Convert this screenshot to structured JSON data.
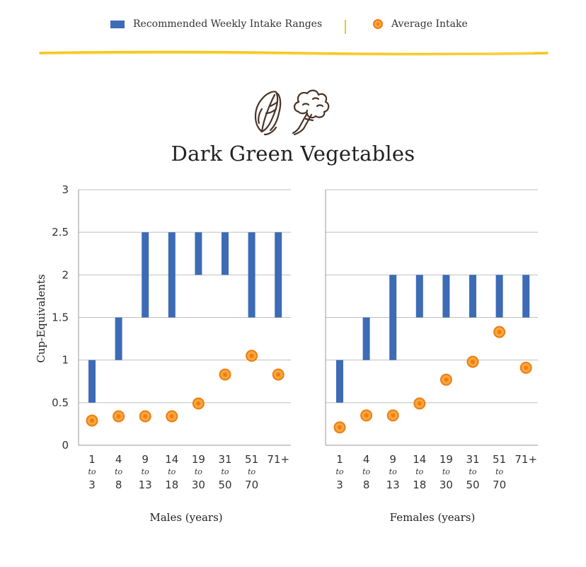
{
  "legend": {
    "range_label": "Recommended Weekly Intake Ranges",
    "average_label": "Average Intake"
  },
  "title": "Dark Green Vegetables",
  "icons": [
    "leafy-greens-icon",
    "broccoli-icon"
  ],
  "colors": {
    "bar": "#3d6bb5",
    "dot_fill": "#f7a63d",
    "dot_stroke": "#ef7d12",
    "accent_yellow": "#f5c518",
    "grid": "#bfbfbf"
  },
  "chart_data": [
    {
      "type": "bar",
      "panel": "males",
      "xlabel": "Males (years)",
      "ylabel": "Cup-Equivalents",
      "ylim": [
        0,
        3
      ],
      "yticks": [
        "0",
        "0.5",
        "1",
        "1.5",
        "2",
        "2.5",
        "3"
      ],
      "categories": [
        {
          "top": "1",
          "mid": "to",
          "bottom": "3"
        },
        {
          "top": "4",
          "mid": "to",
          "bottom": "8"
        },
        {
          "top": "9",
          "mid": "to",
          "bottom": "13"
        },
        {
          "top": "14",
          "mid": "to",
          "bottom": "18"
        },
        {
          "top": "19",
          "mid": "to",
          "bottom": "30"
        },
        {
          "top": "31",
          "mid": "to",
          "bottom": "50"
        },
        {
          "top": "51",
          "mid": "to",
          "bottom": "70"
        },
        {
          "top": "71+",
          "mid": "",
          "bottom": ""
        }
      ],
      "series": [
        {
          "name": "Recommended Weekly Intake Ranges",
          "kind": "range",
          "values": [
            [
              0.5,
              1
            ],
            [
              1,
              1.5
            ],
            [
              1.5,
              2.5
            ],
            [
              1.5,
              2.5
            ],
            [
              2,
              2.5
            ],
            [
              2,
              2.5
            ],
            [
              1.5,
              2.5
            ],
            [
              1.5,
              2.5
            ]
          ]
        },
        {
          "name": "Average Intake",
          "kind": "point",
          "values": [
            0.29,
            0.34,
            0.34,
            0.34,
            0.49,
            0.83,
            1.05,
            0.83
          ]
        }
      ],
      "grid": true
    },
    {
      "type": "bar",
      "panel": "females",
      "xlabel": "Females (years)",
      "ylabel": "",
      "ylim": [
        0,
        3
      ],
      "yticks": [
        "0",
        "0.5",
        "1",
        "1.5",
        "2",
        "2.5",
        "3"
      ],
      "categories": [
        {
          "top": "1",
          "mid": "to",
          "bottom": "3"
        },
        {
          "top": "4",
          "mid": "to",
          "bottom": "8"
        },
        {
          "top": "9",
          "mid": "to",
          "bottom": "13"
        },
        {
          "top": "14",
          "mid": "to",
          "bottom": "18"
        },
        {
          "top": "19",
          "mid": "to",
          "bottom": "30"
        },
        {
          "top": "31",
          "mid": "to",
          "bottom": "50"
        },
        {
          "top": "51",
          "mid": "to",
          "bottom": "70"
        },
        {
          "top": "71+",
          "mid": "",
          "bottom": ""
        }
      ],
      "series": [
        {
          "name": "Recommended Weekly Intake Ranges",
          "kind": "range",
          "values": [
            [
              0.5,
              1
            ],
            [
              1,
              1.5
            ],
            [
              1,
              2
            ],
            [
              1.5,
              2
            ],
            [
              1.5,
              2
            ],
            [
              1.5,
              2
            ],
            [
              1.5,
              2
            ],
            [
              1.5,
              2
            ]
          ]
        },
        {
          "name": "Average Intake",
          "kind": "point",
          "values": [
            0.21,
            0.35,
            0.35,
            0.49,
            0.77,
            0.98,
            1.33,
            0.91
          ]
        }
      ],
      "grid": true
    }
  ]
}
